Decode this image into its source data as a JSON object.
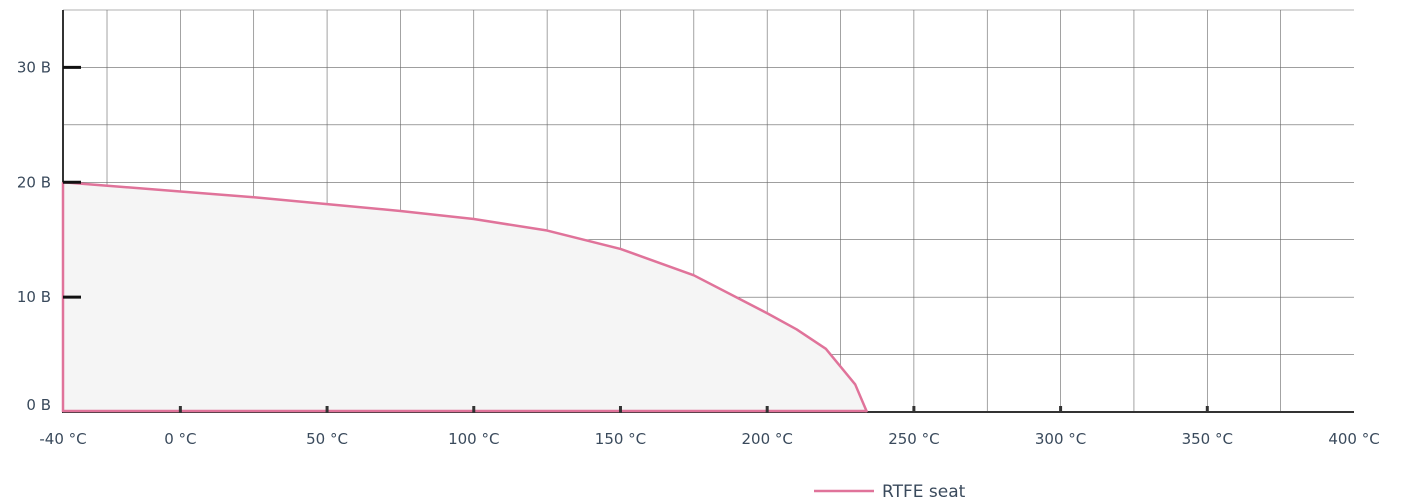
{
  "chart_data": {
    "type": "area",
    "title": "",
    "xlabel": "",
    "ylabel": "",
    "xlim": [
      -40,
      400
    ],
    "ylim": [
      0,
      35
    ],
    "grid": true,
    "legend_position": "bottom-right",
    "colors": {
      "series": "#e0739a",
      "fill": "#f5f5f5",
      "grid": "#666666",
      "axis": "#333333"
    },
    "x_ticks": [
      {
        "value": -40,
        "label": "-40 °C"
      },
      {
        "value": 0,
        "label": "0 °C"
      },
      {
        "value": 50,
        "label": "50 °C"
      },
      {
        "value": 100,
        "label": "100 °C"
      },
      {
        "value": 150,
        "label": "150 °C"
      },
      {
        "value": 200,
        "label": "200 °C"
      },
      {
        "value": 250,
        "label": "250 °C"
      },
      {
        "value": 300,
        "label": "300 °C"
      },
      {
        "value": 350,
        "label": "350 °C"
      },
      {
        "value": 400,
        "label": "400 °C"
      }
    ],
    "y_ticks": [
      {
        "value": 0,
        "label": "0 B"
      },
      {
        "value": 10,
        "label": "10 B"
      },
      {
        "value": 20,
        "label": "20 B"
      },
      {
        "value": 30,
        "label": "30 B"
      }
    ],
    "series": [
      {
        "name": "RTFE seat",
        "color": "#e0739a",
        "x": [
          -40,
          -20,
          0,
          25,
          50,
          75,
          100,
          125,
          150,
          175,
          200,
          210,
          220,
          230,
          234
        ],
        "y": [
          20,
          19.6,
          19.2,
          18.7,
          18.1,
          17.5,
          16.8,
          15.8,
          14.2,
          11.9,
          8.6,
          7.2,
          5.5,
          2.4,
          0
        ]
      }
    ]
  }
}
